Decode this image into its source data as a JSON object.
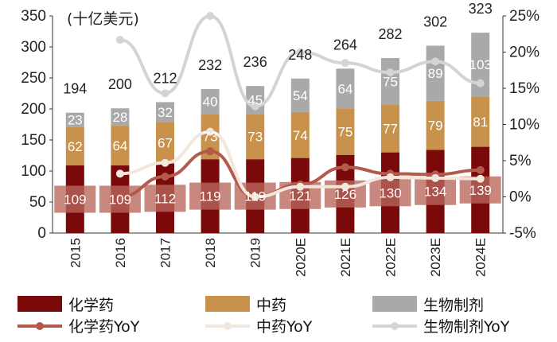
{
  "chart_data": {
    "type": "bar",
    "stacked": true,
    "unit_label": "(十亿美元)",
    "categories": [
      "2015",
      "2016",
      "2017",
      "2018",
      "2019",
      "2020E",
      "2021E",
      "2022E",
      "2023E",
      "2024E"
    ],
    "series": [
      {
        "name": "化学药",
        "color": "#7a0a0a",
        "values": [
          109,
          109,
          112,
          119,
          119,
          121,
          126,
          130,
          134,
          139
        ]
      },
      {
        "name": "中药",
        "color": "#c8924c",
        "values": [
          62,
          64,
          67,
          73,
          73,
          74,
          75,
          77,
          79,
          81
        ]
      },
      {
        "name": "生物制剂",
        "color": "#a9a9a9",
        "values": [
          23,
          28,
          32,
          40,
          45,
          54,
          64,
          75,
          89,
          103
        ]
      }
    ],
    "totals": [
      194,
      200,
      212,
      232,
      236,
      248,
      264,
      282,
      302,
      323
    ],
    "lines": [
      {
        "name": "化学药YoY",
        "color": "#b3594d",
        "values": [
          null,
          0.0,
          2.8,
          6.3,
          0.0,
          1.7,
          4.1,
          3.2,
          3.1,
          3.7
        ]
      },
      {
        "name": "中药YoY",
        "color": "#f1e7dc",
        "values": [
          null,
          3.2,
          4.7,
          9.0,
          0.0,
          1.4,
          1.4,
          2.7,
          2.6,
          2.5
        ]
      },
      {
        "name": "生物制剂YoY",
        "color": "#d4d4d4",
        "values": [
          null,
          21.7,
          14.3,
          25.0,
          12.5,
          20.0,
          18.5,
          17.2,
          18.7,
          15.7
        ]
      }
    ],
    "ylim": [
      0,
      350
    ],
    "yticks": [
      "0",
      "50",
      "100",
      "150",
      "200",
      "250",
      "300",
      "350"
    ],
    "y2lim": [
      -5,
      25
    ],
    "y2ticks": [
      "-5%",
      "0%",
      "5%",
      "10%",
      "15%",
      "20%",
      "25%"
    ],
    "legend_position": "bottom",
    "highlight_color": "#b8665c"
  }
}
